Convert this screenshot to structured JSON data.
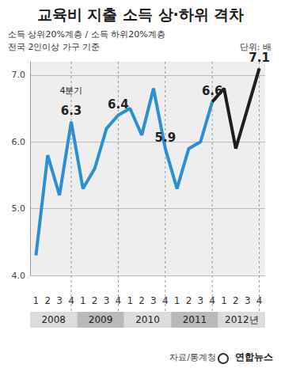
{
  "chart_data": {
    "type": "line",
    "title": "교육비 지출 소득 상·하위 격차",
    "subtitle": [
      "소득 상위20%계층 / 소득 하위20%계층",
      "전국 2인이상 가구 기준"
    ],
    "unit": "단위: 배",
    "source": "자료/통계청",
    "credit": "연합뉴스",
    "categories": [
      "1",
      "2",
      "3",
      "4",
      "1",
      "2",
      "3",
      "4",
      "1",
      "2",
      "3",
      "4",
      "1",
      "2",
      "3",
      "4",
      "1",
      "2",
      "3",
      "4"
    ],
    "x_groups": [
      "2008",
      "2009",
      "2010",
      "2011",
      "2012년"
    ],
    "ylim": [
      4,
      7.2
    ],
    "yticks": [
      {
        "value": 4,
        "label": "4.0"
      },
      {
        "value": 5,
        "label": "5.0"
      },
      {
        "value": 6,
        "label": "6.0"
      },
      {
        "value": 7,
        "label": "7.0"
      }
    ],
    "grid": true,
    "data_labels": true,
    "annotations": [
      {
        "text": "4분기",
        "category_index": 3
      }
    ],
    "series": [
      {
        "color": "#2b8fd3",
        "values": [
          4.3,
          5.8,
          5.2,
          6.3,
          5.3,
          5.6,
          6.2,
          6.4,
          6.5,
          6.1,
          6.8,
          5.9,
          5.3,
          5.9,
          6.0,
          6.6,
          null,
          null,
          null,
          null
        ],
        "value_labels": [
          null,
          null,
          null,
          "6.3",
          null,
          null,
          null,
          "6.4",
          null,
          null,
          null,
          "5.9",
          null,
          null,
          null,
          "6.6",
          null,
          null,
          null,
          null
        ]
      },
      {
        "color": "#1e1e1e",
        "values": [
          null,
          null,
          null,
          null,
          null,
          null,
          null,
          null,
          null,
          null,
          null,
          null,
          null,
          null,
          null,
          6.6,
          6.8,
          5.9,
          6.5,
          7.1
        ],
        "value_labels": [
          null,
          null,
          null,
          null,
          null,
          null,
          null,
          null,
          null,
          null,
          null,
          null,
          null,
          null,
          null,
          null,
          null,
          null,
          null,
          "7.1"
        ]
      }
    ]
  }
}
